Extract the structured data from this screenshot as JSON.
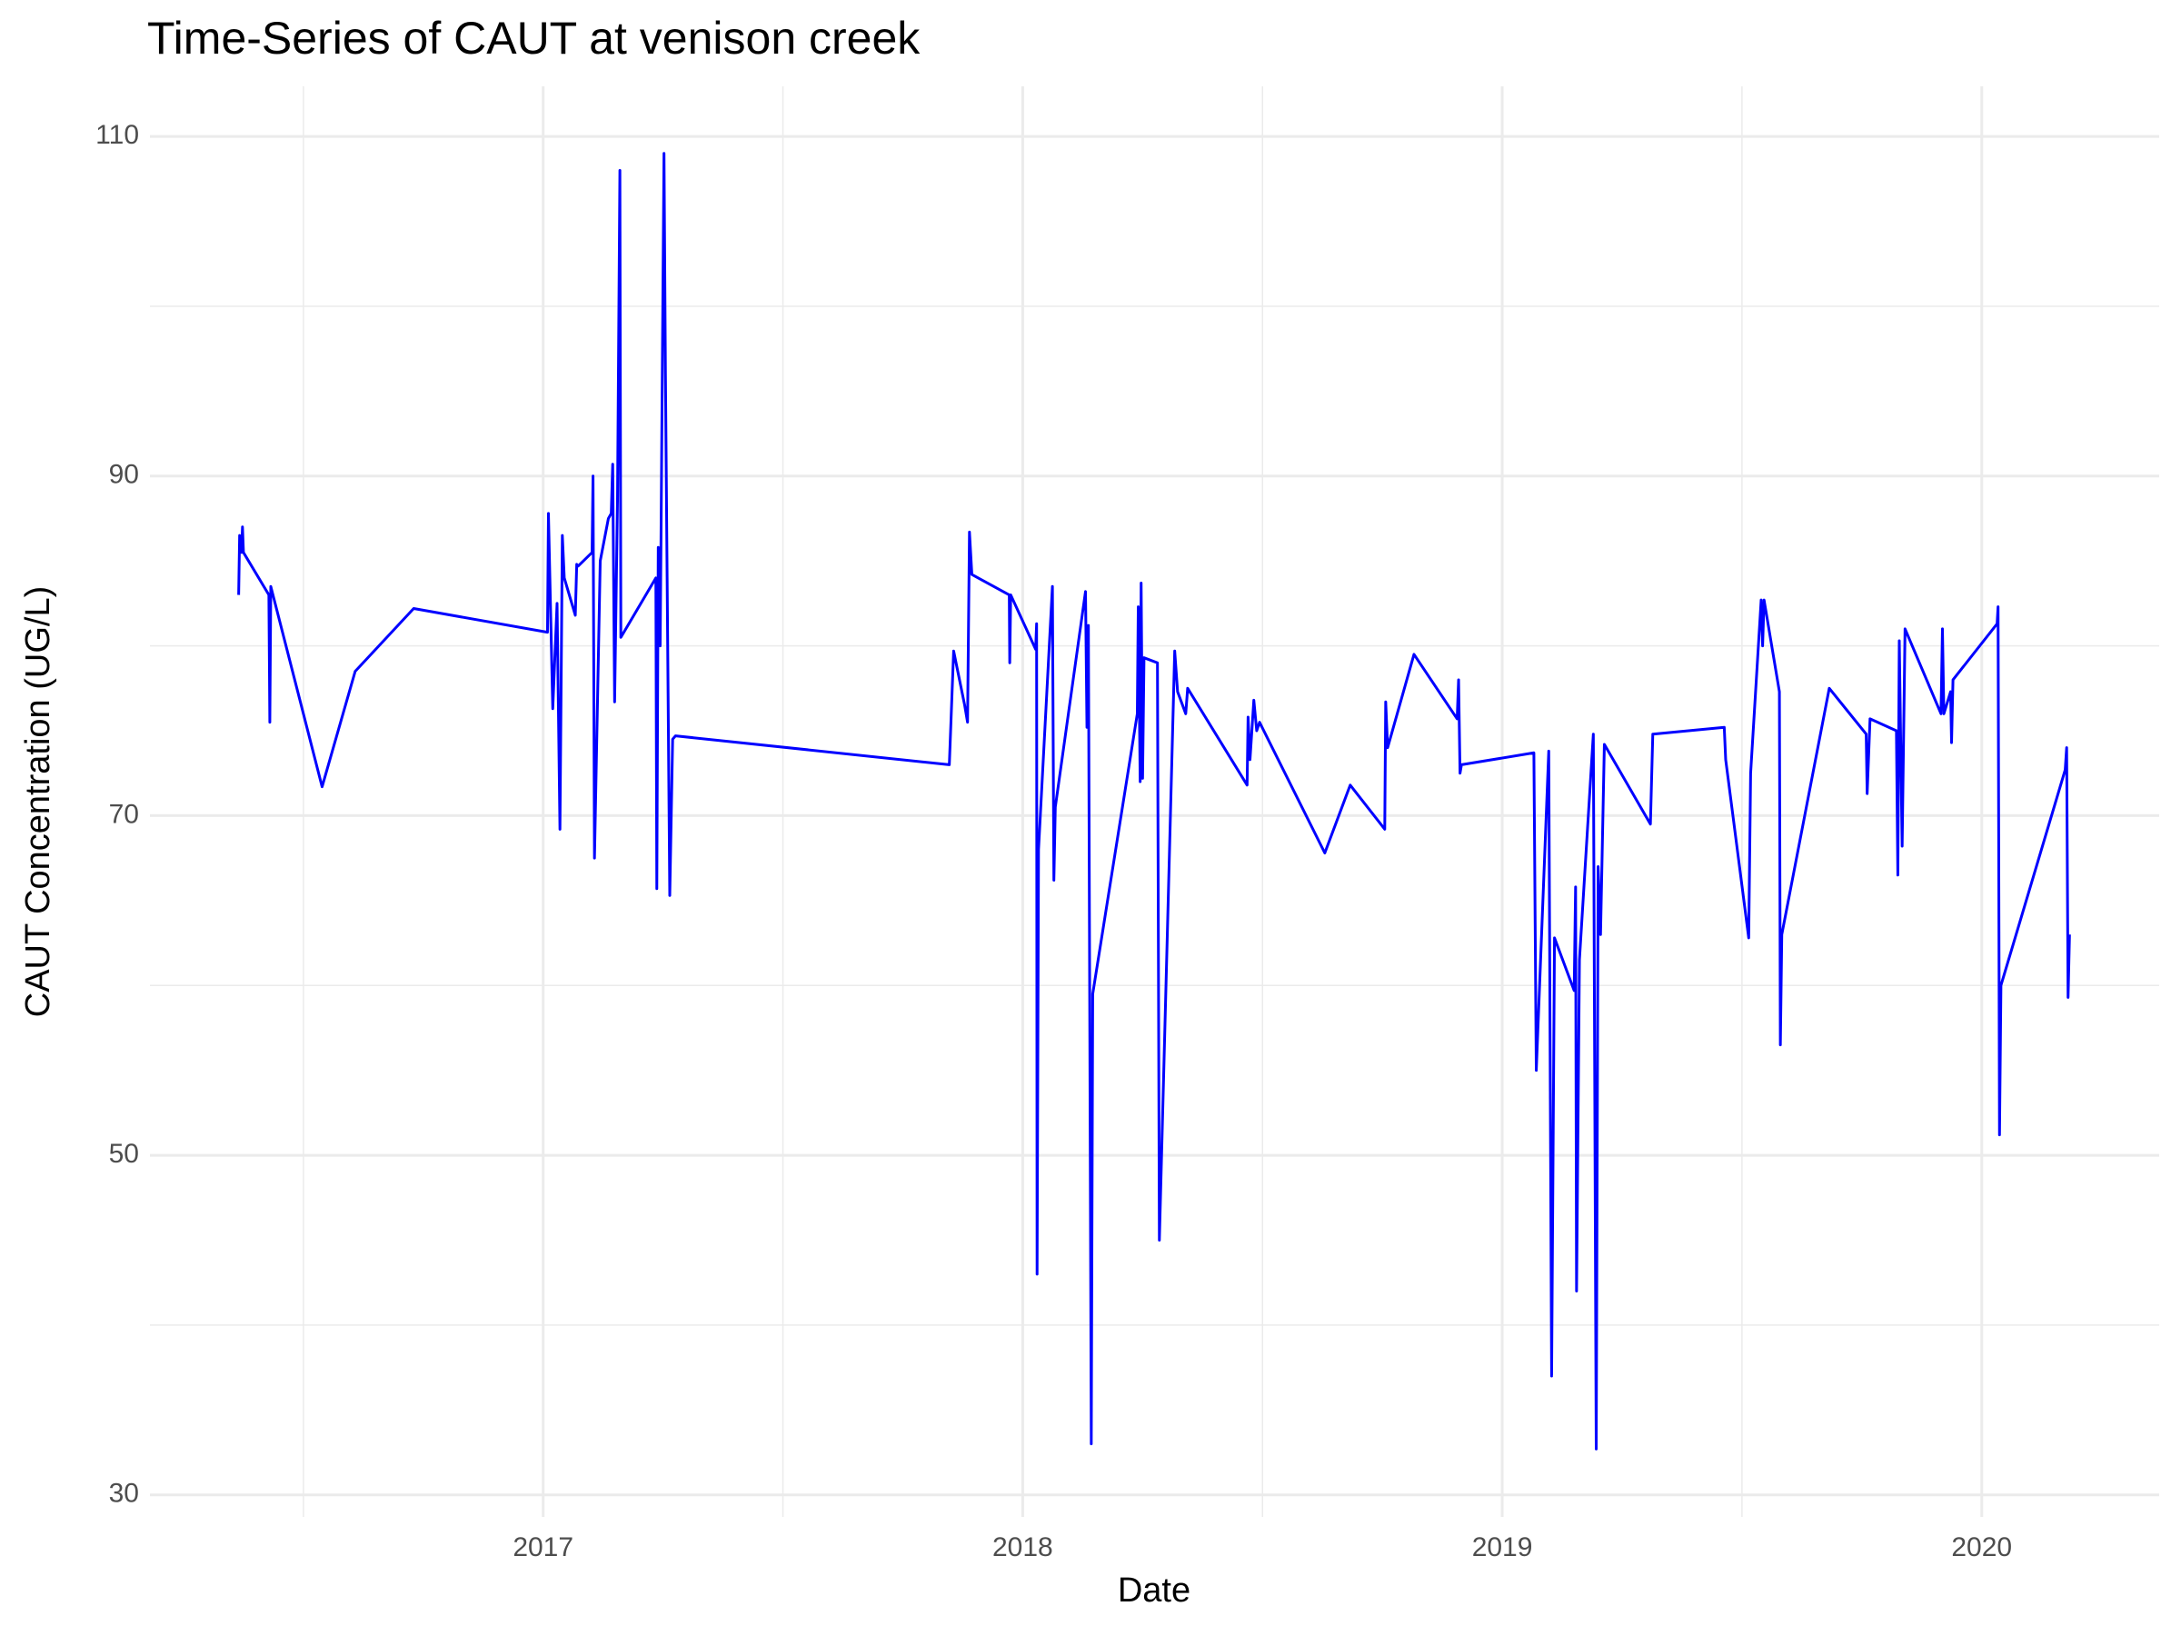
{
  "chart_data": {
    "type": "line",
    "title": "Time-Series of CAUT at venison creek",
    "x_label": "Date",
    "y_label": "CAUT Concentration (UG/L)",
    "color": "#0000ff",
    "grid": true,
    "xlim": [
      2016.18,
      2020.37
    ],
    "xticks": [
      2017,
      2018,
      2019,
      2020
    ],
    "ylim": [
      28.7,
      112.95
    ],
    "yticks": [
      30,
      50,
      70,
      90,
      110
    ],
    "x": [
      2016.365,
      2016.367,
      2016.371,
      2016.373,
      2016.375,
      2016.428,
      2016.43,
      2016.432,
      2016.539,
      2016.608,
      2016.73,
      2017.009,
      2017.011,
      2017.02,
      2017.029,
      2017.035,
      2017.04,
      2017.044,
      2017.067,
      2017.07,
      2017.073,
      2017.102,
      2017.104,
      2017.107,
      2017.119,
      2017.136,
      2017.142,
      2017.145,
      2017.149,
      2017.155,
      2017.16,
      2017.162,
      2017.235,
      2017.237,
      2017.24,
      2017.244,
      2017.252,
      2017.255,
      2017.264,
      2017.27,
      2017.276,
      2017.847,
      2017.856,
      2017.879,
      2017.885,
      2017.889,
      2017.894,
      2017.972,
      2017.973,
      2017.975,
      2018.027,
      2018.029,
      2018.03,
      2018.033,
      2018.062,
      2018.065,
      2018.068,
      2018.131,
      2018.134,
      2018.137,
      2018.143,
      2018.146,
      2018.239,
      2018.241,
      2018.245,
      2018.247,
      2018.25,
      2018.253,
      2018.281,
      2018.285,
      2018.317,
      2018.323,
      2018.34,
      2018.344,
      2018.468,
      2018.47,
      2018.474,
      2018.482,
      2018.488,
      2018.494,
      2018.63,
      2018.683,
      2018.755,
      2018.757,
      2018.761,
      2018.816,
      2018.906,
      2018.909,
      2018.912,
      2018.915,
      2019.066,
      2019.071,
      2019.097,
      2019.103,
      2019.109,
      2019.15,
      2019.153,
      2019.155,
      2019.161,
      2019.19,
      2019.196,
      2019.2,
      2019.205,
      2019.213,
      2019.309,
      2019.314,
      2019.463,
      2019.466,
      2019.514,
      2019.518,
      2019.54,
      2019.543,
      2019.546,
      2019.578,
      2019.58,
      2019.583,
      2019.682,
      2019.759,
      2019.761,
      2019.767,
      2019.822,
      2019.825,
      2019.828,
      2019.834,
      2019.84,
      2019.915,
      2019.918,
      2019.921,
      2019.935,
      2019.937,
      2019.94,
      2020.032,
      2020.034,
      2020.037,
      2020.04,
      2020.174,
      2020.177,
      2020.18,
      2020.183
    ],
    "values": [
      83,
      86.5,
      85.5,
      87,
      85.5,
      83,
      75.5,
      83.5,
      71.7,
      78.5,
      82.2,
      80.8,
      87.8,
      76.3,
      82.5,
      69.2,
      86.5,
      84,
      81.8,
      84.8,
      84.7,
      85.5,
      90,
      67.5,
      85,
      87.5,
      87.8,
      90.7,
      76.7,
      88.5,
      108,
      80.5,
      84,
      65.7,
      85.8,
      80,
      109,
      96,
      65.3,
      74.5,
      74.7,
      73,
      79.7,
      76.5,
      75.5,
      86.7,
      84.2,
      83,
      79,
      83,
      79.8,
      81.3,
      43,
      68,
      83.5,
      66.2,
      70.5,
      83.2,
      75.2,
      81.2,
      33,
      59.5,
      76,
      82.3,
      72,
      83.7,
      72.2,
      79.3,
      79,
      45,
      79.7,
      77.3,
      76,
      77.5,
      71.8,
      75.8,
      73.3,
      76.8,
      75,
      75.5,
      67.8,
      71.8,
      69.2,
      76.7,
      74,
      79.5,
      75.7,
      78,
      72.5,
      73,
      73.7,
      55,
      73.8,
      37,
      62.8,
      59.7,
      65.8,
      42,
      61.5,
      74.8,
      32.7,
      67,
      63,
      74.2,
      69.5,
      74.8,
      75.2,
      73.3,
      62.8,
      72.5,
      82.7,
      80,
      82.7,
      77.3,
      56.5,
      63,
      77.5,
      74.8,
      71.3,
      75.7,
      75,
      66.5,
      80.3,
      68.2,
      81,
      76,
      81,
      76,
      77.3,
      74.3,
      78,
      81.3,
      82.3,
      51.2,
      60,
      72.7,
      74,
      59.3,
      63
    ]
  }
}
